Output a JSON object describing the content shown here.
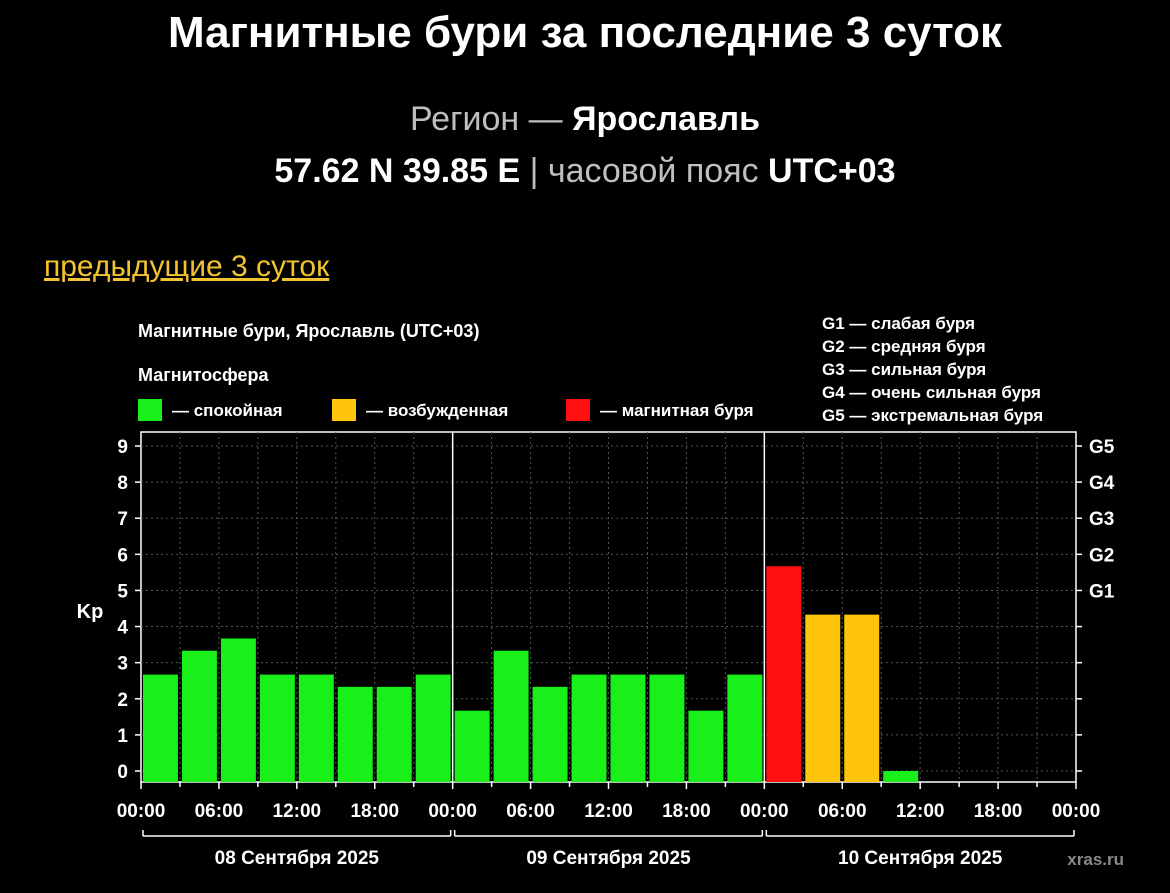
{
  "header": {
    "title": "Магнитные бури за последние 3 суток",
    "region_label": "Регион —",
    "region_name": "Ярославль",
    "coords": "57.62 N 39.85 E",
    "separator": "|",
    "tz_label": "часовой пояс",
    "tz_value": "UTC+03"
  },
  "nav": {
    "prev_link": "предыдущие 3 суток"
  },
  "colors": {
    "calm": "#19f019",
    "excited": "#ffc40c",
    "storm": "#ff0f0f",
    "link": "#f2c230",
    "background": "#000000"
  },
  "chart_data": {
    "type": "bar",
    "title": "Магнитные бури, Ярославль (UTC+03)",
    "legend_title": "Магнитосфера",
    "legend": [
      {
        "key": "calm",
        "label": "— спокойная"
      },
      {
        "key": "excited",
        "label": "— возбужденная"
      },
      {
        "key": "storm",
        "label": "— магнитная буря"
      }
    ],
    "g_legend": [
      "G1 — слабая буря",
      "G2 — средняя буря",
      "G3 — сильная буря",
      "G4 — очень сильная буря",
      "G5 — экстремальная буря"
    ],
    "ylabel": "Kp",
    "ylim": [
      0,
      9
    ],
    "yticks": [
      "0",
      "1",
      "2",
      "3",
      "4",
      "5",
      "6",
      "7",
      "8",
      "9"
    ],
    "right_ticks": [
      {
        "value": 5,
        "label": "G1"
      },
      {
        "value": 6,
        "label": "G2"
      },
      {
        "value": 7,
        "label": "G3"
      },
      {
        "value": 8,
        "label": "G4"
      },
      {
        "value": 9,
        "label": "G5"
      }
    ],
    "xticks": [
      "00:00",
      "06:00",
      "12:00",
      "18:00",
      "00:00",
      "06:00",
      "12:00",
      "18:00",
      "00:00",
      "06:00",
      "12:00",
      "18:00",
      "00:00"
    ],
    "days": [
      "08 Сентября 2025",
      "09 Сентября 2025",
      "10 Сентября 2025"
    ],
    "values": [
      2.67,
      3.33,
      3.67,
      2.67,
      2.67,
      2.33,
      2.33,
      2.67,
      1.67,
      3.33,
      2.33,
      2.67,
      2.67,
      2.67,
      1.67,
      2.67,
      5.67,
      4.33,
      4.33,
      0.0
    ],
    "levels": [
      "calm",
      "calm",
      "calm",
      "calm",
      "calm",
      "calm",
      "calm",
      "calm",
      "calm",
      "calm",
      "calm",
      "calm",
      "calm",
      "calm",
      "calm",
      "calm",
      "storm",
      "excited",
      "excited",
      "calm"
    ],
    "grid": true,
    "watermark": "xras.ru"
  }
}
